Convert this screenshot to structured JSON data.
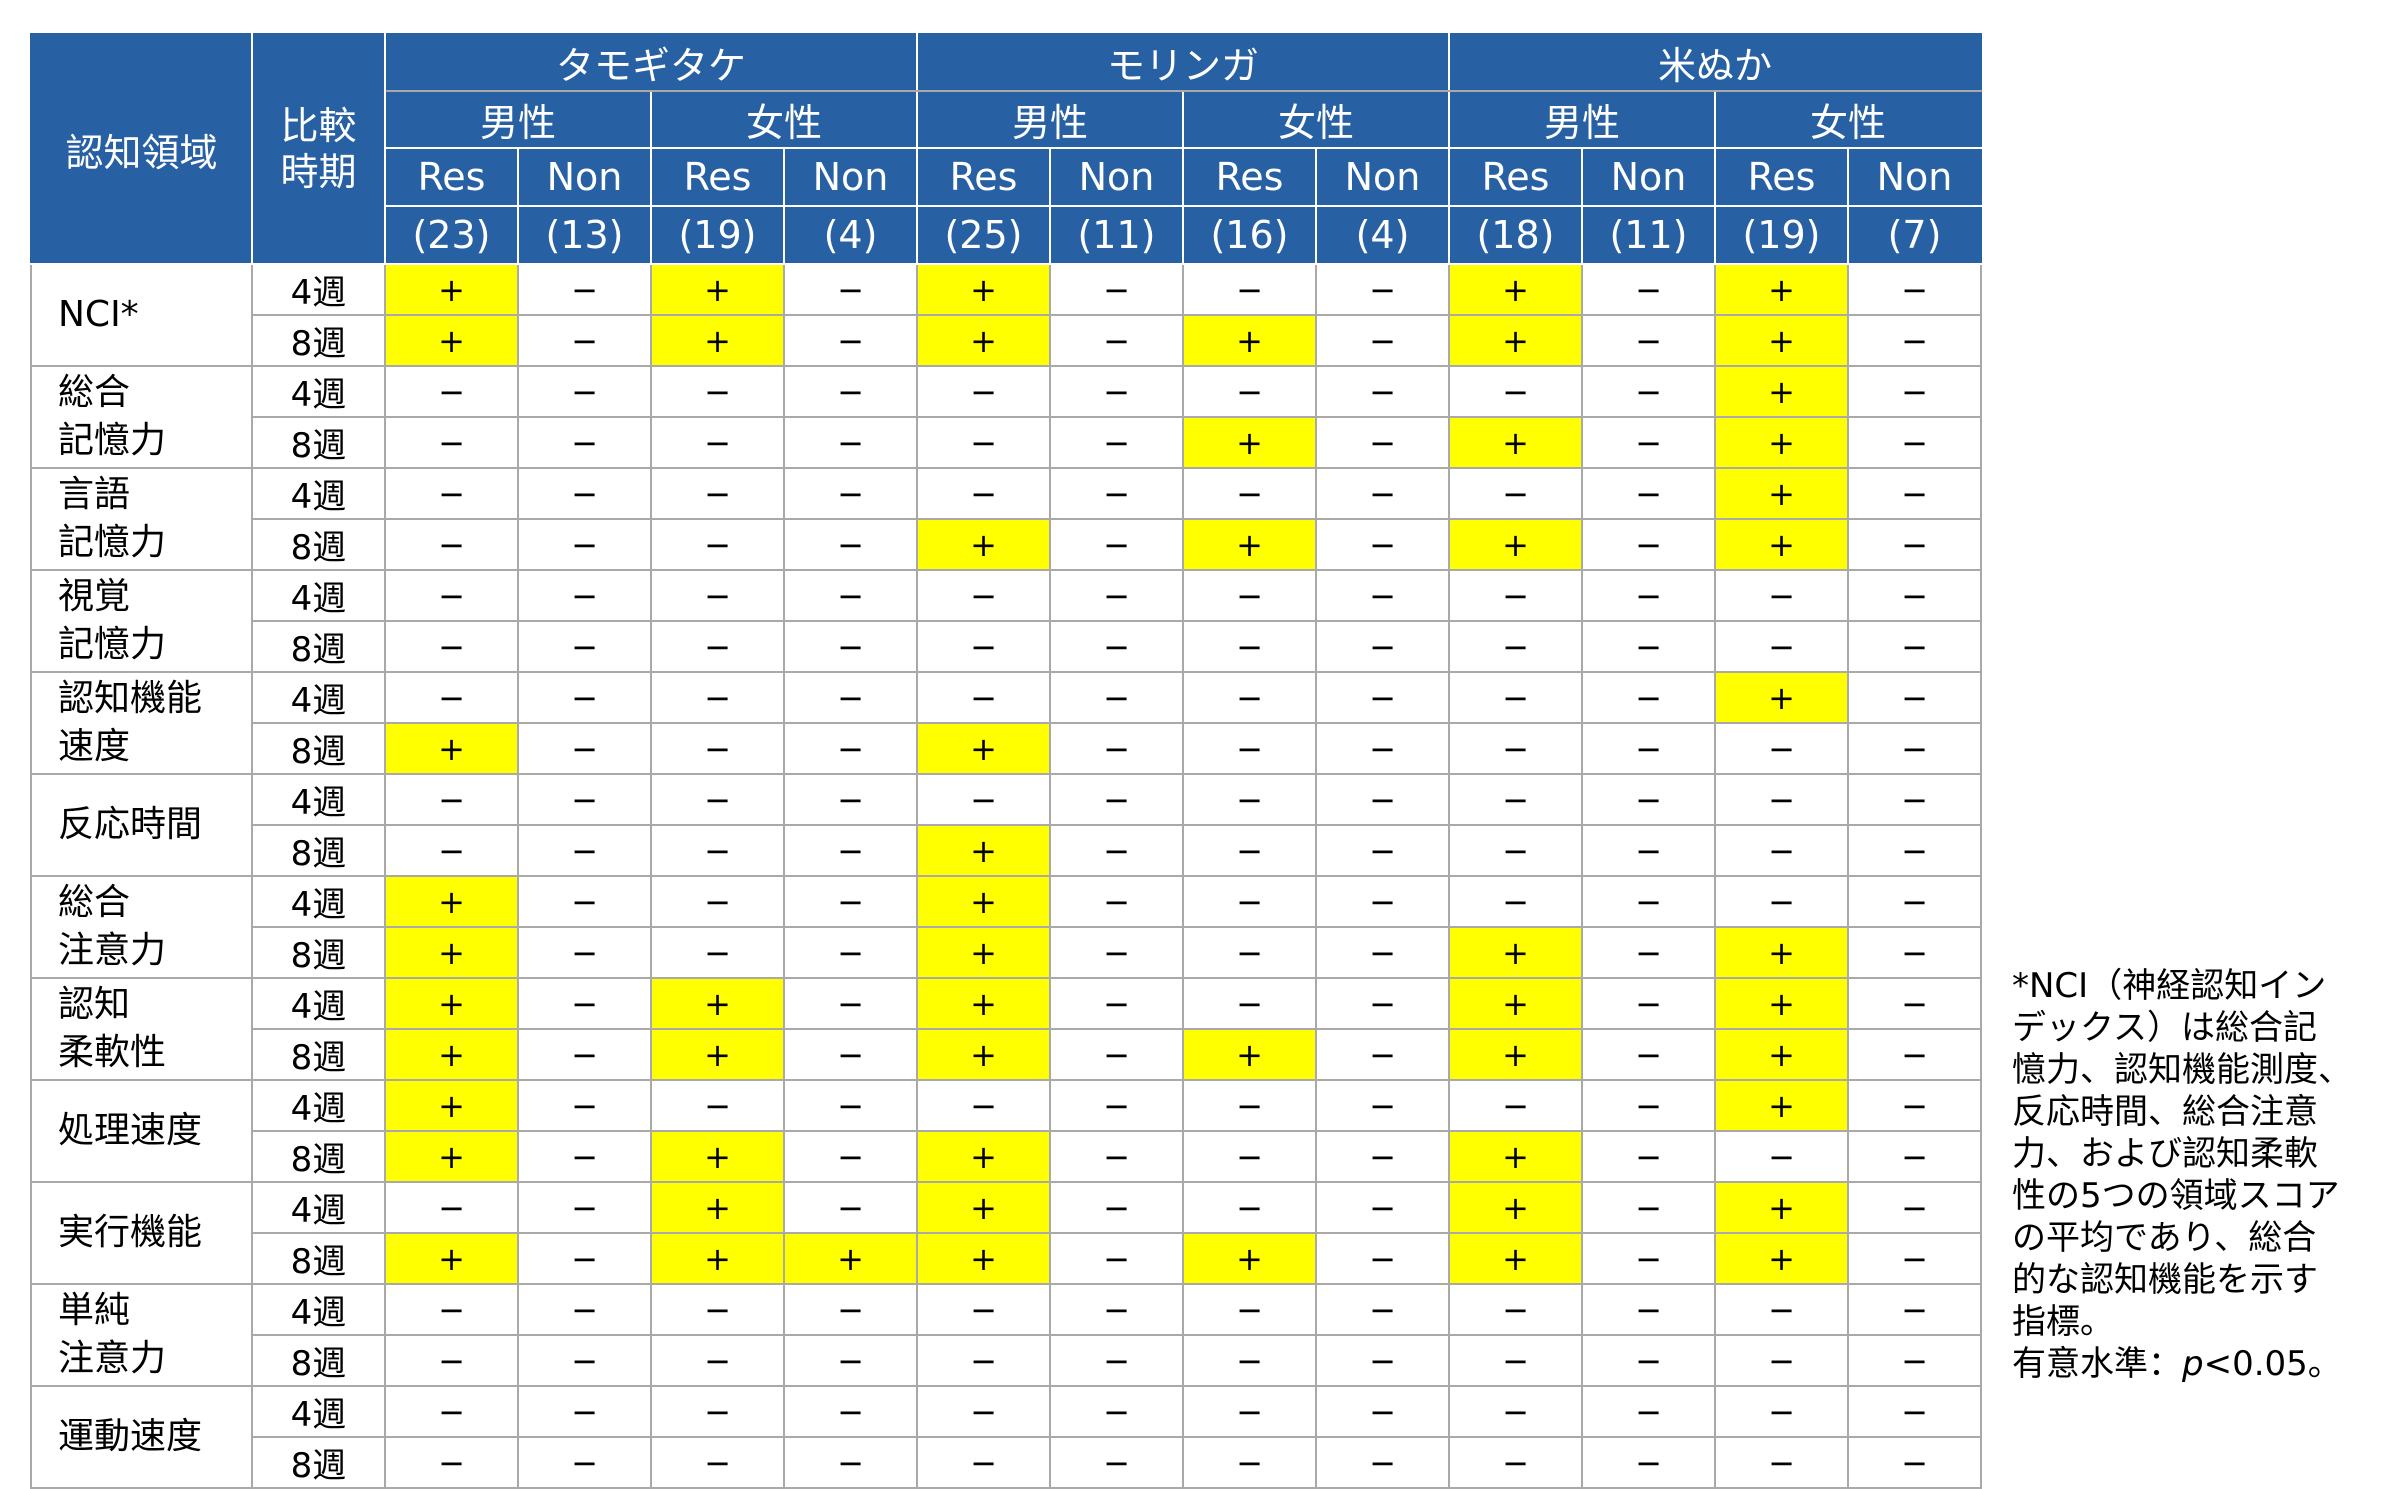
{
  "header": {
    "domain_label": "認知領域",
    "comparison_label_line1": "比較",
    "comparison_label_line2": "時期",
    "items": [
      {
        "name": "タモギタケ",
        "sexes": [
          {
            "label": "男性",
            "groups": [
              {
                "label": "Res",
                "n": "(23)"
              },
              {
                "label": "Non",
                "n": "(13)"
              }
            ]
          },
          {
            "label": "女性",
            "groups": [
              {
                "label": "Res",
                "n": "(19)"
              },
              {
                "label": "Non",
                "n": "(4)"
              }
            ]
          }
        ]
      },
      {
        "name": "モリンガ",
        "sexes": [
          {
            "label": "男性",
            "groups": [
              {
                "label": "Res",
                "n": "(25)"
              },
              {
                "label": "Non",
                "n": "(11)"
              }
            ]
          },
          {
            "label": "女性",
            "groups": [
              {
                "label": "Res",
                "n": "(16)"
              },
              {
                "label": "Non",
                "n": "(4)"
              }
            ]
          }
        ]
      },
      {
        "name": "米ぬか",
        "sexes": [
          {
            "label": "男性",
            "groups": [
              {
                "label": "Res",
                "n": "(18)"
              },
              {
                "label": "Non",
                "n": "(11)"
              }
            ]
          },
          {
            "label": "女性",
            "groups": [
              {
                "label": "Res",
                "n": "(19)"
              },
              {
                "label": "Non",
                "n": "(7)"
              }
            ]
          }
        ]
      }
    ]
  },
  "colors": {
    "header_bg": "#2860a4",
    "significant_bg": "#ffff00",
    "grid": "#a9a9a9"
  },
  "rows": [
    {
      "domain": [
        "NCI*"
      ],
      "periods": [
        {
          "period": "4週",
          "values": [
            "+",
            "−",
            "+",
            "−",
            "+",
            "−",
            "−",
            "−",
            "+",
            "−",
            "+",
            "−"
          ]
        },
        {
          "period": "8週",
          "values": [
            "+",
            "−",
            "+",
            "−",
            "+",
            "−",
            "+",
            "−",
            "+",
            "−",
            "+",
            "−"
          ]
        }
      ]
    },
    {
      "domain": [
        "総合",
        "記憶力"
      ],
      "periods": [
        {
          "period": "4週",
          "values": [
            "−",
            "−",
            "−",
            "−",
            "−",
            "−",
            "−",
            "−",
            "−",
            "−",
            "+",
            "−"
          ]
        },
        {
          "period": "8週",
          "values": [
            "−",
            "−",
            "−",
            "−",
            "−",
            "−",
            "+",
            "−",
            "+",
            "−",
            "+",
            "−"
          ]
        }
      ]
    },
    {
      "domain": [
        "言語",
        "記憶力"
      ],
      "periods": [
        {
          "period": "4週",
          "values": [
            "−",
            "−",
            "−",
            "−",
            "−",
            "−",
            "−",
            "−",
            "−",
            "−",
            "+",
            "−"
          ]
        },
        {
          "period": "8週",
          "values": [
            "−",
            "−",
            "−",
            "−",
            "+",
            "−",
            "+",
            "−",
            "+",
            "−",
            "+",
            "−"
          ]
        }
      ]
    },
    {
      "domain": [
        "視覚",
        "記憶力"
      ],
      "periods": [
        {
          "period": "4週",
          "values": [
            "−",
            "−",
            "−",
            "−",
            "−",
            "−",
            "−",
            "−",
            "−",
            "−",
            "−",
            "−"
          ]
        },
        {
          "period": "8週",
          "values": [
            "−",
            "−",
            "−",
            "−",
            "−",
            "−",
            "−",
            "−",
            "−",
            "−",
            "−",
            "−"
          ]
        }
      ]
    },
    {
      "domain": [
        "認知機能",
        "速度"
      ],
      "periods": [
        {
          "period": "4週",
          "values": [
            "−",
            "−",
            "−",
            "−",
            "−",
            "−",
            "−",
            "−",
            "−",
            "−",
            "+",
            "−"
          ]
        },
        {
          "period": "8週",
          "values": [
            "+",
            "−",
            "−",
            "−",
            "+",
            "−",
            "−",
            "−",
            "−",
            "−",
            "−",
            "−"
          ]
        }
      ]
    },
    {
      "domain": [
        "反応時間"
      ],
      "periods": [
        {
          "period": "4週",
          "values": [
            "−",
            "−",
            "−",
            "−",
            "−",
            "−",
            "−",
            "−",
            "−",
            "−",
            "−",
            "−"
          ]
        },
        {
          "period": "8週",
          "values": [
            "−",
            "−",
            "−",
            "−",
            "+",
            "−",
            "−",
            "−",
            "−",
            "−",
            "−",
            "−"
          ]
        }
      ]
    },
    {
      "domain": [
        "総合",
        "注意力"
      ],
      "periods": [
        {
          "period": "4週",
          "values": [
            "+",
            "−",
            "−",
            "−",
            "+",
            "−",
            "−",
            "−",
            "−",
            "−",
            "−",
            "−"
          ]
        },
        {
          "period": "8週",
          "values": [
            "+",
            "−",
            "−",
            "−",
            "+",
            "−",
            "−",
            "−",
            "+",
            "−",
            "+",
            "−"
          ]
        }
      ]
    },
    {
      "domain": [
        "認知",
        "柔軟性"
      ],
      "periods": [
        {
          "period": "4週",
          "values": [
            "+",
            "−",
            "+",
            "−",
            "+",
            "−",
            "−",
            "−",
            "+",
            "−",
            "+",
            "−"
          ]
        },
        {
          "period": "8週",
          "values": [
            "+",
            "−",
            "+",
            "−",
            "+",
            "−",
            "+",
            "−",
            "+",
            "−",
            "+",
            "−"
          ]
        }
      ]
    },
    {
      "domain": [
        "処理速度"
      ],
      "periods": [
        {
          "period": "4週",
          "values": [
            "+",
            "−",
            "−",
            "−",
            "−",
            "−",
            "−",
            "−",
            "−",
            "−",
            "+",
            "−"
          ]
        },
        {
          "period": "8週",
          "values": [
            "+",
            "−",
            "+",
            "−",
            "+",
            "−",
            "−",
            "−",
            "+",
            "−",
            "−",
            "−"
          ]
        }
      ]
    },
    {
      "domain": [
        "実行機能"
      ],
      "periods": [
        {
          "period": "4週",
          "values": [
            "−",
            "−",
            "+",
            "−",
            "+",
            "−",
            "−",
            "−",
            "+",
            "−",
            "+",
            "−"
          ]
        },
        {
          "period": "8週",
          "values": [
            "+",
            "−",
            "+",
            "+",
            "+",
            "−",
            "+",
            "−",
            "+",
            "−",
            "+",
            "−"
          ]
        }
      ]
    },
    {
      "domain": [
        "単純",
        "注意力"
      ],
      "periods": [
        {
          "period": "4週",
          "values": [
            "−",
            "−",
            "−",
            "−",
            "−",
            "−",
            "−",
            "−",
            "−",
            "−",
            "−",
            "−"
          ]
        },
        {
          "period": "8週",
          "values": [
            "−",
            "−",
            "−",
            "−",
            "−",
            "−",
            "−",
            "−",
            "−",
            "−",
            "−",
            "−"
          ]
        }
      ]
    },
    {
      "domain": [
        "運動速度"
      ],
      "periods": [
        {
          "period": "4週",
          "values": [
            "−",
            "−",
            "−",
            "−",
            "−",
            "−",
            "−",
            "−",
            "−",
            "−",
            "−",
            "−"
          ]
        },
        {
          "period": "8週",
          "values": [
            "−",
            "−",
            "−",
            "−",
            "−",
            "−",
            "−",
            "−",
            "−",
            "−",
            "−",
            "−"
          ]
        }
      ]
    }
  ],
  "note": {
    "lines": [
      "*NCI（神経認知イン",
      "デックス）は総合記",
      "憶力、認知機能測度、",
      "反応時間、総合注意",
      "力、および認知柔軟",
      "性の5つの領域スコア",
      "の平均であり、総合",
      "的な認知機能を示す",
      "指標。"
    ],
    "sig_prefix": "有意水準：",
    "sig_p": "p",
    "sig_suffix": "<0.05。"
  }
}
